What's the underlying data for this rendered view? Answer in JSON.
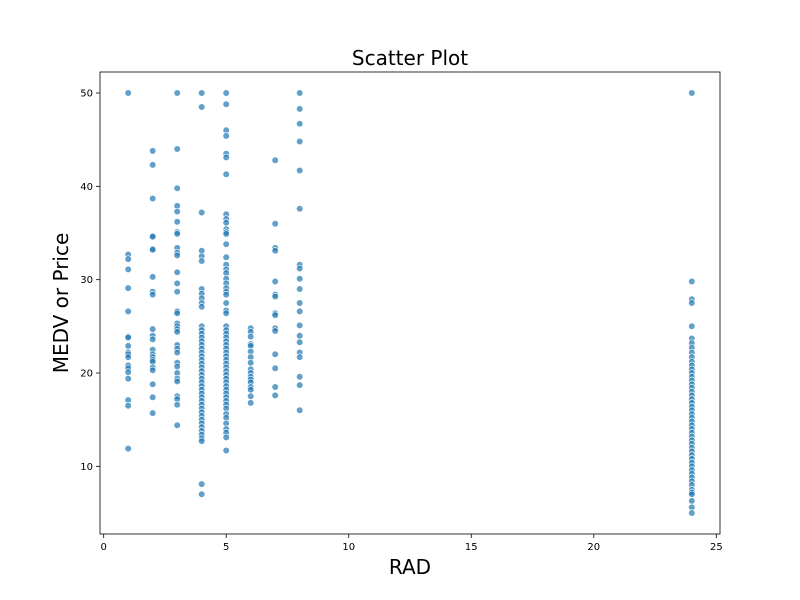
{
  "chart_data": {
    "type": "scatter",
    "title": "Scatter Plot",
    "xlabel": "RAD",
    "ylabel": "MEDV or Price",
    "xlim": [
      -0.15,
      25.15
    ],
    "ylim": [
      2.75,
      52.25
    ],
    "xticks": [
      0,
      5,
      10,
      15,
      20,
      25
    ],
    "yticks": [
      10,
      20,
      30,
      40,
      50
    ],
    "grid": false,
    "legend": "none",
    "marker_color": "#1f77b4",
    "series": [
      {
        "points": [
          [
            1,
            50.0
          ],
          [
            1,
            32.7
          ],
          [
            1,
            32.2
          ],
          [
            1,
            31.1
          ],
          [
            1,
            29.1
          ],
          [
            1,
            26.6
          ],
          [
            1,
            23.9
          ],
          [
            1,
            23.8
          ],
          [
            1,
            22.9
          ],
          [
            1,
            22.2
          ],
          [
            1,
            22.0
          ],
          [
            1,
            21.7
          ],
          [
            1,
            20.8
          ],
          [
            1,
            20.5
          ],
          [
            1,
            20.1
          ],
          [
            1,
            19.4
          ],
          [
            1,
            17.1
          ],
          [
            1,
            16.5
          ],
          [
            1,
            11.9
          ],
          [
            2,
            43.8
          ],
          [
            2,
            42.3
          ],
          [
            2,
            38.7
          ],
          [
            2,
            34.7
          ],
          [
            2,
            34.6
          ],
          [
            2,
            33.3
          ],
          [
            2,
            33.2
          ],
          [
            2,
            30.3
          ],
          [
            2,
            28.7
          ],
          [
            2,
            28.4
          ],
          [
            2,
            24.7
          ],
          [
            2,
            24.0
          ],
          [
            2,
            23.6
          ],
          [
            2,
            22.5
          ],
          [
            2,
            22.0
          ],
          [
            2,
            21.7
          ],
          [
            2,
            21.4
          ],
          [
            2,
            21.2
          ],
          [
            2,
            20.6
          ],
          [
            2,
            20.3
          ],
          [
            2,
            18.8
          ],
          [
            2,
            17.4
          ],
          [
            2,
            15.7
          ],
          [
            3,
            50.0
          ],
          [
            3,
            44.0
          ],
          [
            3,
            39.8
          ],
          [
            3,
            37.9
          ],
          [
            3,
            37.3
          ],
          [
            3,
            36.2
          ],
          [
            3,
            35.1
          ],
          [
            3,
            34.9
          ],
          [
            3,
            33.4
          ],
          [
            3,
            32.9
          ],
          [
            3,
            32.6
          ],
          [
            3,
            30.8
          ],
          [
            3,
            29.6
          ],
          [
            3,
            28.7
          ],
          [
            3,
            26.6
          ],
          [
            3,
            26.4
          ],
          [
            3,
            25.3
          ],
          [
            3,
            25.0
          ],
          [
            3,
            24.7
          ],
          [
            3,
            24.4
          ],
          [
            3,
            23.0
          ],
          [
            3,
            22.6
          ],
          [
            3,
            22.2
          ],
          [
            3,
            21.1
          ],
          [
            3,
            20.7
          ],
          [
            3,
            20.0
          ],
          [
            3,
            19.4
          ],
          [
            3,
            19.1
          ],
          [
            3,
            17.5
          ],
          [
            3,
            17.2
          ],
          [
            3,
            16.6
          ],
          [
            3,
            14.4
          ],
          [
            4,
            50.0
          ],
          [
            4,
            48.5
          ],
          [
            4,
            37.2
          ],
          [
            4,
            33.1
          ],
          [
            4,
            32.5
          ],
          [
            4,
            32.0
          ],
          [
            4,
            29.0
          ],
          [
            4,
            28.5
          ],
          [
            4,
            28.0
          ],
          [
            4,
            27.5
          ],
          [
            4,
            27.1
          ],
          [
            4,
            25.0
          ],
          [
            4,
            24.6
          ],
          [
            4,
            24.2
          ],
          [
            4,
            23.8
          ],
          [
            4,
            23.4
          ],
          [
            4,
            23.0
          ],
          [
            4,
            22.6
          ],
          [
            4,
            22.2
          ],
          [
            4,
            21.8
          ],
          [
            4,
            21.4
          ],
          [
            4,
            21.0
          ],
          [
            4,
            20.6
          ],
          [
            4,
            20.2
          ],
          [
            4,
            19.8
          ],
          [
            4,
            19.4
          ],
          [
            4,
            19.0
          ],
          [
            4,
            18.6
          ],
          [
            4,
            18.2
          ],
          [
            4,
            17.8
          ],
          [
            4,
            17.4
          ],
          [
            4,
            17.0
          ],
          [
            4,
            16.6
          ],
          [
            4,
            16.2
          ],
          [
            4,
            15.8
          ],
          [
            4,
            15.4
          ],
          [
            4,
            15.0
          ],
          [
            4,
            14.6
          ],
          [
            4,
            14.2
          ],
          [
            4,
            13.8
          ],
          [
            4,
            13.4
          ],
          [
            4,
            13.0
          ],
          [
            4,
            12.7
          ],
          [
            4,
            8.1
          ],
          [
            4,
            7.0
          ],
          [
            5,
            50.0
          ],
          [
            5,
            48.8
          ],
          [
            5,
            46.0
          ],
          [
            5,
            45.4
          ],
          [
            5,
            43.5
          ],
          [
            5,
            43.1
          ],
          [
            5,
            41.3
          ],
          [
            5,
            37.0
          ],
          [
            5,
            36.5
          ],
          [
            5,
            36.1
          ],
          [
            5,
            35.4
          ],
          [
            5,
            35.1
          ],
          [
            5,
            34.9
          ],
          [
            5,
            33.8
          ],
          [
            5,
            32.4
          ],
          [
            5,
            31.6
          ],
          [
            5,
            31.1
          ],
          [
            5,
            30.7
          ],
          [
            5,
            30.1
          ],
          [
            5,
            29.6
          ],
          [
            5,
            29.1
          ],
          [
            5,
            28.7
          ],
          [
            5,
            28.4
          ],
          [
            5,
            27.5
          ],
          [
            5,
            26.7
          ],
          [
            5,
            26.4
          ],
          [
            5,
            25.0
          ],
          [
            5,
            24.6
          ],
          [
            5,
            24.2
          ],
          [
            5,
            23.8
          ],
          [
            5,
            23.4
          ],
          [
            5,
            23.0
          ],
          [
            5,
            22.6
          ],
          [
            5,
            22.2
          ],
          [
            5,
            21.8
          ],
          [
            5,
            21.4
          ],
          [
            5,
            21.0
          ],
          [
            5,
            20.6
          ],
          [
            5,
            20.2
          ],
          [
            5,
            19.8
          ],
          [
            5,
            19.4
          ],
          [
            5,
            19.0
          ],
          [
            5,
            18.6
          ],
          [
            5,
            18.2
          ],
          [
            5,
            17.8
          ],
          [
            5,
            17.4
          ],
          [
            5,
            17.0
          ],
          [
            5,
            16.6
          ],
          [
            5,
            16.2
          ],
          [
            5,
            15.6
          ],
          [
            5,
            15.2
          ],
          [
            5,
            14.6
          ],
          [
            5,
            14.0
          ],
          [
            5,
            13.6
          ],
          [
            5,
            13.1
          ],
          [
            5,
            11.7
          ],
          [
            6,
            24.8
          ],
          [
            6,
            24.4
          ],
          [
            6,
            23.9
          ],
          [
            6,
            23.1
          ],
          [
            6,
            22.9
          ],
          [
            6,
            22.3
          ],
          [
            6,
            21.7
          ],
          [
            6,
            21.1
          ],
          [
            6,
            20.4
          ],
          [
            6,
            20.0
          ],
          [
            6,
            19.6
          ],
          [
            6,
            19.3
          ],
          [
            6,
            19.0
          ],
          [
            6,
            18.5
          ],
          [
            6,
            18.2
          ],
          [
            6,
            17.5
          ],
          [
            6,
            16.8
          ],
          [
            7,
            42.8
          ],
          [
            7,
            36.0
          ],
          [
            7,
            33.4
          ],
          [
            7,
            33.1
          ],
          [
            7,
            29.8
          ],
          [
            7,
            28.4
          ],
          [
            7,
            28.2
          ],
          [
            7,
            26.4
          ],
          [
            7,
            26.2
          ],
          [
            7,
            24.8
          ],
          [
            7,
            24.5
          ],
          [
            7,
            22.0
          ],
          [
            7,
            20.5
          ],
          [
            7,
            18.5
          ],
          [
            7,
            17.6
          ],
          [
            8,
            50.0
          ],
          [
            8,
            48.3
          ],
          [
            8,
            46.7
          ],
          [
            8,
            44.8
          ],
          [
            8,
            41.7
          ],
          [
            8,
            37.6
          ],
          [
            8,
            31.6
          ],
          [
            8,
            31.2
          ],
          [
            8,
            30.1
          ],
          [
            8,
            29.0
          ],
          [
            8,
            27.5
          ],
          [
            8,
            26.6
          ],
          [
            8,
            25.1
          ],
          [
            8,
            24.0
          ],
          [
            8,
            23.3
          ],
          [
            8,
            22.2
          ],
          [
            8,
            21.7
          ],
          [
            8,
            19.6
          ],
          [
            8,
            18.7
          ],
          [
            8,
            16.0
          ],
          [
            24,
            50.0
          ],
          [
            24,
            29.8
          ],
          [
            24,
            27.9
          ],
          [
            24,
            27.5
          ],
          [
            24,
            25.0
          ],
          [
            24,
            23.7
          ],
          [
            24,
            23.2
          ],
          [
            24,
            22.7
          ],
          [
            24,
            22.2
          ],
          [
            24,
            21.7
          ],
          [
            24,
            21.2
          ],
          [
            24,
            20.8
          ],
          [
            24,
            20.4
          ],
          [
            24,
            20.0
          ],
          [
            24,
            19.6
          ],
          [
            24,
            19.2
          ],
          [
            24,
            18.8
          ],
          [
            24,
            18.4
          ],
          [
            24,
            18.0
          ],
          [
            24,
            17.6
          ],
          [
            24,
            17.2
          ],
          [
            24,
            16.8
          ],
          [
            24,
            16.4
          ],
          [
            24,
            16.0
          ],
          [
            24,
            15.6
          ],
          [
            24,
            15.2
          ],
          [
            24,
            14.8
          ],
          [
            24,
            14.4
          ],
          [
            24,
            14.0
          ],
          [
            24,
            13.6
          ],
          [
            24,
            13.2
          ],
          [
            24,
            12.8
          ],
          [
            24,
            12.4
          ],
          [
            24,
            12.0
          ],
          [
            24,
            11.6
          ],
          [
            24,
            11.2
          ],
          [
            24,
            10.8
          ],
          [
            24,
            10.4
          ],
          [
            24,
            10.0
          ],
          [
            24,
            9.6
          ],
          [
            24,
            9.2
          ],
          [
            24,
            8.8
          ],
          [
            24,
            8.4
          ],
          [
            24,
            8.0
          ],
          [
            24,
            7.5
          ],
          [
            24,
            7.2
          ],
          [
            24,
            7.0
          ],
          [
            24,
            6.3
          ],
          [
            24,
            5.6
          ],
          [
            24,
            5.0
          ]
        ]
      }
    ]
  }
}
